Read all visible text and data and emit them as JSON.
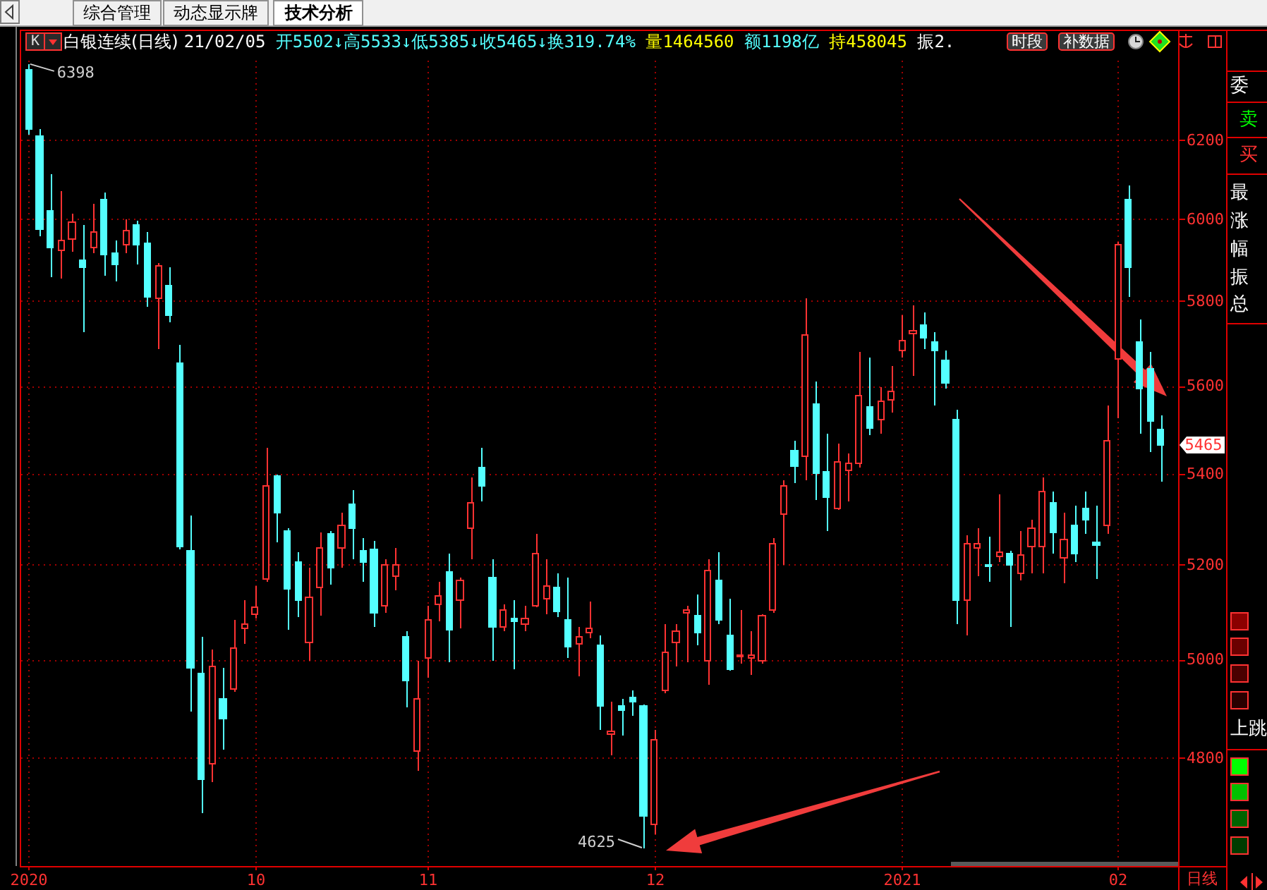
{
  "chart_data": {
    "type": "candlestick",
    "title": "白银连续(日线)",
    "subtitle": "21/02/05 开5502↓高5533↓低5385↓收5465↓换319.74% 量1464560 额1198亿 持458045 振2.",
    "categories": [
      "2020",
      null,
      null,
      null,
      null,
      null,
      null,
      null,
      null,
      null,
      null,
      null,
      null,
      null,
      null,
      null,
      null,
      null,
      null,
      null,
      null,
      "10",
      null,
      null,
      null,
      null,
      null,
      null,
      null,
      null,
      null,
      null,
      null,
      null,
      null,
      null,
      null,
      "11",
      null,
      null,
      null,
      null,
      null,
      null,
      null,
      null,
      null,
      null,
      null,
      null,
      null,
      null,
      null,
      null,
      null,
      null,
      null,
      null,
      "12",
      null,
      null,
      null,
      null,
      null,
      null,
      null,
      null,
      null,
      null,
      null,
      null,
      null,
      null,
      null,
      null,
      null,
      null,
      null,
      null,
      null,
      null,
      "2021",
      null,
      null,
      null,
      null,
      null,
      null,
      null,
      null,
      null,
      null,
      null,
      null,
      null,
      null,
      null,
      null,
      null,
      null,
      null,
      "02",
      null,
      null,
      null,
      null
    ],
    "ohlc": [
      [
        6383,
        6398,
        6215,
        6229
      ],
      [
        6212,
        6229,
        5959,
        5977
      ],
      [
        6022,
        6113,
        5859,
        5933
      ],
      [
        5925,
        6072,
        5856,
        5950
      ],
      [
        5954,
        6017,
        5920,
        5996
      ],
      [
        5902,
        5986,
        5729,
        5884
      ],
      [
        5932,
        6041,
        5918,
        5970
      ],
      [
        6051,
        6070,
        5863,
        5913
      ],
      [
        5918,
        5948,
        5848,
        5891
      ],
      [
        5940,
        6000,
        5918,
        5973
      ],
      [
        5988,
        5997,
        5891,
        5940
      ],
      [
        5942,
        5970,
        5789,
        5810
      ],
      [
        5807,
        5894,
        5689,
        5888
      ],
      [
        5838,
        5882,
        5751,
        5769
      ],
      [
        5653,
        5697,
        5235,
        5240
      ],
      [
        5231,
        5310,
        4894,
        4984
      ],
      [
        4973,
        5048,
        4693,
        4760
      ],
      [
        4789,
        5021,
        4755,
        4986
      ],
      [
        4921,
        4983,
        4817,
        4879
      ],
      [
        4942,
        5085,
        4935,
        5025
      ],
      [
        5065,
        5126,
        5033,
        5076
      ],
      [
        5096,
        5156,
        5087,
        5112
      ],
      [
        5170,
        5461,
        5165,
        5375
      ],
      [
        5396,
        5400,
        5250,
        5315
      ],
      [
        5275,
        5281,
        5063,
        5150
      ],
      [
        5206,
        5228,
        5090,
        5126
      ],
      [
        5036,
        5194,
        4998,
        5132
      ],
      [
        5152,
        5273,
        5093,
        5238
      ],
      [
        5268,
        5275,
        5158,
        5194
      ],
      [
        5238,
        5316,
        5194,
        5288
      ],
      [
        5335,
        5366,
        5213,
        5280
      ],
      [
        5231,
        5260,
        5164,
        5206
      ],
      [
        5235,
        5253,
        5069,
        5099
      ],
      [
        5114,
        5213,
        5099,
        5200
      ],
      [
        5176,
        5238,
        5146,
        5200
      ],
      [
        5048,
        5060,
        4902,
        4958
      ],
      [
        4815,
        4998,
        4777,
        4921
      ],
      [
        5004,
        5114,
        4964,
        5085
      ],
      [
        5117,
        5164,
        5081,
        5135
      ],
      [
        5186,
        5226,
        4995,
        5063
      ],
      [
        5126,
        5174,
        5067,
        5168
      ],
      [
        5281,
        5394,
        5213,
        5338
      ],
      [
        5415,
        5461,
        5341,
        5373
      ],
      [
        5173,
        5213,
        4998,
        5069
      ],
      [
        5069,
        5117,
        5061,
        5105
      ],
      [
        5086,
        5126,
        4981,
        5081
      ],
      [
        5075,
        5114,
        5060,
        5087
      ],
      [
        5114,
        5269,
        5110,
        5226
      ],
      [
        5129,
        5213,
        5095,
        5155
      ],
      [
        5152,
        5182,
        5090,
        5102
      ],
      [
        5085,
        5173,
        5004,
        5027
      ],
      [
        5033,
        5069,
        4966,
        5048
      ],
      [
        5057,
        5123,
        5045,
        5065
      ],
      [
        5030,
        5051,
        4857,
        4905
      ],
      [
        4849,
        4916,
        4806,
        4856
      ],
      [
        4905,
        4921,
        4846,
        4898
      ],
      [
        4923,
        4937,
        4887,
        4914
      ],
      [
        4905,
        4910,
        4625,
        4687
      ],
      [
        4670,
        4857,
        4653,
        4837
      ],
      [
        4939,
        5075,
        4931,
        5015
      ],
      [
        5036,
        5075,
        4986,
        5061
      ],
      [
        5099,
        5114,
        4995,
        5105
      ],
      [
        5093,
        5137,
        5030,
        5057
      ],
      [
        5000,
        5213,
        4948,
        5188
      ],
      [
        5168,
        5228,
        5075,
        5085
      ],
      [
        5051,
        5129,
        4977,
        4981
      ],
      [
        5007,
        5105,
        4992,
        5010
      ],
      [
        5003,
        5060,
        4969,
        5010
      ],
      [
        4998,
        5095,
        4992,
        5093
      ],
      [
        5105,
        5260,
        5099,
        5246
      ],
      [
        5313,
        5388,
        5200,
        5375
      ],
      [
        5452,
        5474,
        5381,
        5419
      ],
      [
        5439,
        5807,
        5388,
        5720
      ],
      [
        5559,
        5613,
        5344,
        5403
      ],
      [
        5406,
        5493,
        5275,
        5348
      ],
      [
        5325,
        5468,
        5320,
        5429
      ],
      [
        5409,
        5448,
        5340,
        5423
      ],
      [
        5426,
        5680,
        5415,
        5580
      ],
      [
        5552,
        5667,
        5487,
        5504
      ],
      [
        5524,
        5600,
        5490,
        5567
      ],
      [
        5568,
        5649,
        5540,
        5589
      ],
      [
        5684,
        5767,
        5667,
        5708
      ],
      [
        5723,
        5790,
        5624,
        5731
      ],
      [
        5744,
        5773,
        5687,
        5713
      ],
      [
        5705,
        5727,
        5555,
        5684
      ],
      [
        5660,
        5684,
        5594,
        5609
      ],
      [
        5525,
        5545,
        5075,
        5126
      ],
      [
        5126,
        5266,
        5051,
        5246
      ],
      [
        5238,
        5281,
        5176,
        5248
      ],
      [
        5202,
        5263,
        5164,
        5198
      ],
      [
        5218,
        5356,
        5206,
        5228
      ],
      [
        5225,
        5231,
        5069,
        5202
      ],
      [
        5182,
        5275,
        5167,
        5221
      ],
      [
        5240,
        5298,
        5182,
        5281
      ],
      [
        5240,
        5394,
        5182,
        5363
      ],
      [
        5338,
        5363,
        5225,
        5273
      ],
      [
        5216,
        5315,
        5161,
        5256
      ],
      [
        5288,
        5329,
        5206,
        5225
      ],
      [
        5325,
        5363,
        5269,
        5300
      ],
      [
        5250,
        5331,
        5170,
        5245
      ],
      [
        5288,
        5555,
        5269,
        5477
      ],
      [
        5663,
        5946,
        5526,
        5940
      ],
      [
        6051,
        6087,
        5810,
        5884
      ],
      [
        5704,
        5756,
        5493,
        5596
      ],
      [
        5640,
        5680,
        5449,
        5519
      ],
      [
        5502,
        5533,
        5385,
        5465
      ]
    ],
    "colors": [
      "#54ffff",
      "#54ffff",
      "#54ffff",
      "#ff3232",
      "#ff3232",
      "#54ffff",
      "#ff3232",
      "#54ffff",
      "#54ffff",
      "#ff3232",
      "#54ffff",
      "#54ffff",
      "#ff3232",
      "#54ffff",
      "#54ffff",
      "#54ffff",
      "#54ffff",
      "#ff3232",
      "#54ffff",
      "#ff3232",
      "#ff3232",
      "#ff3232",
      "#ff3232",
      "#54ffff",
      "#54ffff",
      "#54ffff",
      "#ff3232",
      "#ff3232",
      "#54ffff",
      "#ff3232",
      "#54ffff",
      "#54ffff",
      "#54ffff",
      "#ff3232",
      "#ff3232",
      "#54ffff",
      "#ff3232",
      "#ff3232",
      "#ff3232",
      "#54ffff",
      "#ff3232",
      "#ff3232",
      "#54ffff",
      "#54ffff",
      "#ff3232",
      "#54ffff",
      "#ff3232",
      "#ff3232",
      "#ff3232",
      "#54ffff",
      "#54ffff",
      "#ff3232",
      "#ff3232",
      "#54ffff",
      "#ff3232",
      "#54ffff",
      "#54ffff",
      "#54ffff",
      "#ff3232",
      "#ff3232",
      "#ff3232",
      "#ff3232",
      "#54ffff",
      "#ff3232",
      "#54ffff",
      "#54ffff",
      "#ff3232",
      "#ff3232",
      "#ff3232",
      "#ff3232",
      "#ff3232",
      "#54ffff",
      "#ff3232",
      "#54ffff",
      "#54ffff",
      "#ff3232",
      "#ff3232",
      "#ff3232",
      "#54ffff",
      "#ff3232",
      "#ff3232",
      "#ff3232",
      "#ff3232",
      "#54ffff",
      "#54ffff",
      "#54ffff",
      "#54ffff",
      "#ff3232",
      "#ff3232",
      "#54ffff",
      "#ff3232",
      "#54ffff",
      "#ff3232",
      "#ff3232",
      "#ff3232",
      "#54ffff",
      "#ff3232",
      "#54ffff",
      "#54ffff",
      "#54ffff",
      "#ff3232",
      "#ff3232",
      "#54ffff",
      "#54ffff",
      "#54ffff",
      "#54ffff"
    ],
    "ylim": [
      4590,
      6490
    ],
    "yticks": [
      4800,
      5000,
      5200,
      5400,
      5600,
      5800,
      6000,
      6200
    ],
    "log": true,
    "grid": true,
    "annotations": [
      "6398",
      "4625",
      {
        "text": "5465",
        "y": 5465
      },
      "K",
      "综合管理",
      "动态显示牌",
      "技术分析",
      "时段",
      "补数据",
      "委",
      "卖",
      "买",
      "最",
      "涨",
      "幅",
      "振",
      "总",
      "上跳",
      "日线"
    ]
  }
}
